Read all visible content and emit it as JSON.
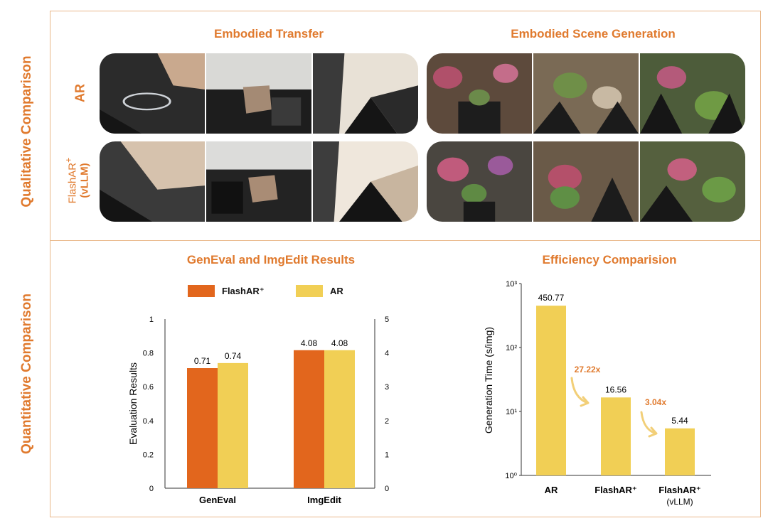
{
  "qualitative": {
    "side_label": "Qualitative Comparison",
    "left_title": "Embodied Transfer",
    "right_title": "Embodied Scene Generation",
    "row_ar": "AR",
    "row_flash_line1": "FlashAR",
    "row_flash_sup": "+",
    "row_flash_line2": "(vLLM)"
  },
  "quantitative": {
    "side_label": "Quantitative Comparison",
    "left_title": "GenEval and ImgEdit Results",
    "right_title": "Efficiency Comparision"
  },
  "colors": {
    "accent": "#e07a2e",
    "flashar": "#e2661d",
    "ar": "#f1cf55",
    "frame": "#e9b88a"
  },
  "chart_data": [
    {
      "type": "bar",
      "title": "GenEval and ImgEdit Results",
      "categories": [
        "GenEval",
        "ImgEdit"
      ],
      "series": [
        {
          "name": "FlashAR⁺",
          "values": [
            0.71,
            4.08
          ],
          "color": "#e2661d"
        },
        {
          "name": "AR",
          "values": [
            0.74,
            4.08
          ],
          "color": "#f1cf55"
        }
      ],
      "data_labels": [
        [
          "0.71",
          "0.74"
        ],
        [
          "4.08",
          "4.08"
        ]
      ],
      "ylabel": "Evaluation Results",
      "ylim": [
        0,
        1
      ],
      "y_ticks": [
        "0",
        "0.2",
        "0.4",
        "0.6",
        "0.8",
        "1"
      ],
      "y2lim": [
        0,
        5
      ],
      "y2_ticks": [
        "0",
        "1",
        "2",
        "3",
        "4",
        "5"
      ],
      "legend": "top"
    },
    {
      "type": "bar",
      "title": "Efficiency Comparision",
      "categories": [
        "AR",
        "FlashAR⁺",
        "FlashAR⁺"
      ],
      "category_sub": [
        "",
        "",
        "(vLLM)"
      ],
      "values": [
        450.77,
        16.56,
        5.44
      ],
      "data_labels": [
        "450.77",
        "16.56",
        "5.44"
      ],
      "color": "#f1cf55",
      "ylabel": "Generation Time (s/img)",
      "yscale": "log",
      "ylim": [
        1,
        1000
      ],
      "y_ticks": [
        "10⁰",
        "10¹",
        "10²",
        "10³"
      ],
      "annotations": [
        "27.22x",
        "3.04x"
      ]
    }
  ]
}
